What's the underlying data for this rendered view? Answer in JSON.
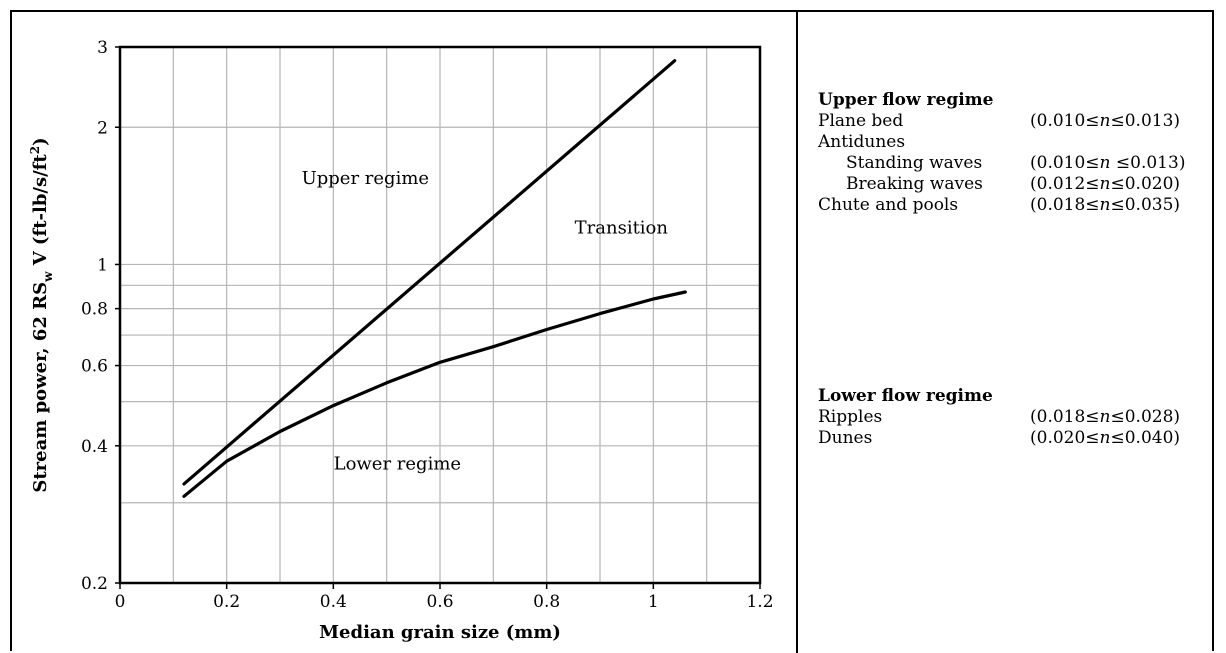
{
  "chart_data": {
    "type": "line",
    "xlabel": "Median grain size (mm)",
    "ylabel_parts": {
      "main": "Stream power, 62 RS",
      "sub": "w",
      "after": " V (ft-lb/s/ft",
      "sup": "2",
      "end": ")"
    },
    "xlim": [
      0,
      1.2
    ],
    "ylim": [
      0.2,
      3
    ],
    "y_scale": "log",
    "grid": true,
    "x_ticks": [
      {
        "value": 0,
        "label": "0"
      },
      {
        "value": 0.2,
        "label": "0.2"
      },
      {
        "value": 0.4,
        "label": "0.4"
      },
      {
        "value": 0.6,
        "label": "0.6"
      },
      {
        "value": 0.8,
        "label": "0.8"
      },
      {
        "value": 1.0,
        "label": "1"
      },
      {
        "value": 1.2,
        "label": "1.2"
      }
    ],
    "x_grid": [
      0.1,
      0.2,
      0.3,
      0.4,
      0.5,
      0.6,
      0.7,
      0.8,
      0.9,
      1.0,
      1.1
    ],
    "y_ticks": [
      {
        "value": 0.2,
        "label": "0.2"
      },
      {
        "value": 0.4,
        "label": "0.4"
      },
      {
        "value": 0.6,
        "label": "0.6"
      },
      {
        "value": 0.8,
        "label": "0.8"
      },
      {
        "value": 1,
        "label": "1"
      },
      {
        "value": 2,
        "label": "2"
      },
      {
        "value": 3,
        "label": "3"
      }
    ],
    "y_grid": [
      0.3,
      0.4,
      0.5,
      0.6,
      0.7,
      0.8,
      0.9,
      1,
      2
    ],
    "series": [
      {
        "x": [
          0.12,
          1.04
        ],
        "y": [
          0.33,
          2.8
        ]
      },
      {
        "x": [
          0.12,
          0.2,
          0.3,
          0.4,
          0.5,
          0.6,
          0.7,
          0.8,
          0.9,
          1.0,
          1.06
        ],
        "y": [
          0.31,
          0.37,
          0.43,
          0.49,
          0.55,
          0.61,
          0.66,
          0.72,
          0.78,
          0.84,
          0.87
        ]
      }
    ],
    "annotations": [
      {
        "text": "Upper regime",
        "x": 0.46,
        "y": 1.5
      },
      {
        "text": "Transition",
        "x": 0.94,
        "y": 1.17
      },
      {
        "text": "Lower regime",
        "x": 0.52,
        "y": 0.355
      }
    ]
  },
  "legend": {
    "upper": {
      "title": "Upper flow regime",
      "rows": [
        {
          "label": "Plane bed",
          "range": "(0.010≤n≤0.013)",
          "indent": false
        },
        {
          "label": "Antidunes",
          "range": "",
          "indent": false
        },
        {
          "label": "Standing waves",
          "range": "(0.010≤n ≤0.013)",
          "indent": true
        },
        {
          "label": "Breaking waves",
          "range": "(0.012≤n≤0.020)",
          "indent": true
        },
        {
          "label": "Chute and pools",
          "range": "(0.018≤n≤0.035)",
          "indent": false
        }
      ]
    },
    "lower": {
      "title": "Lower flow regime",
      "rows": [
        {
          "label": "Ripples",
          "range": "(0.018≤n≤0.028)",
          "indent": false
        },
        {
          "label": "Dunes",
          "range": "(0.020≤n≤0.040)",
          "indent": false
        }
      ]
    }
  }
}
